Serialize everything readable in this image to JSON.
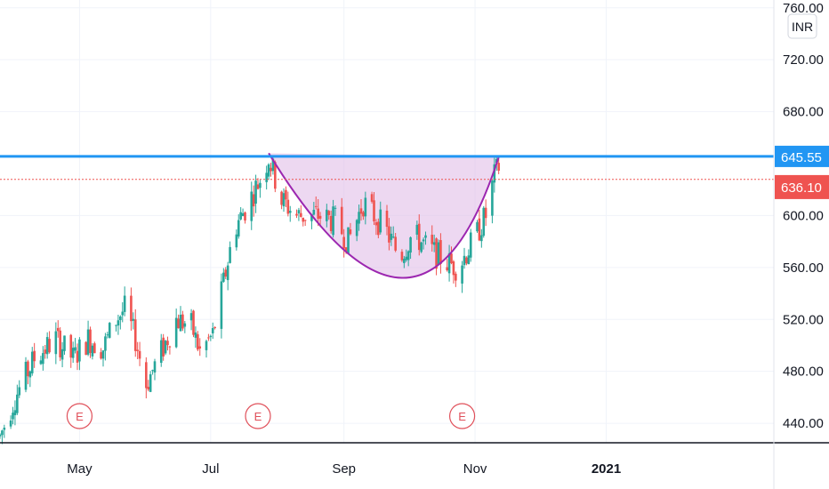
{
  "chart_data": {
    "type": "candlestick",
    "currency": "INR",
    "y_axis": {
      "range": [
        425,
        766
      ],
      "ticks": [
        "760.00",
        "720.00",
        "680.00",
        "600.00",
        "560.00",
        "520.00",
        "480.00",
        "440.00"
      ],
      "tick_values": [
        760,
        720,
        680,
        600,
        560,
        520,
        480,
        440
      ]
    },
    "x_axis": {
      "range": [
        "2020-03-25",
        "2021-03-20"
      ],
      "ticks": [
        {
          "label": "May",
          "date": "2020-05-01",
          "bold": false
        },
        {
          "label": "Jul",
          "date": "2020-07-01",
          "bold": false
        },
        {
          "label": "Sep",
          "date": "2020-09-01",
          "bold": false
        },
        {
          "label": "Nov",
          "date": "2020-11-01",
          "bold": false
        },
        {
          "label": "2021",
          "date": "2021-01-01",
          "bold": true
        }
      ]
    },
    "resistance": {
      "value": 645.55,
      "label": "645.55",
      "color": "#2196f3"
    },
    "last_price": {
      "value": 636.1,
      "label": "636.10",
      "color": "#ef5350"
    },
    "cup_pattern": {
      "left_rim": {
        "date": "2020-07-28",
        "value": 648
      },
      "bottom": {
        "date": "2020-09-28",
        "value": 552
      },
      "right_rim": {
        "date": "2020-11-12",
        "value": 645
      },
      "fill": "#e1bee7",
      "stroke": "#9c27b0"
    },
    "earnings_markers": [
      {
        "label": "E",
        "date": "2020-05-01"
      },
      {
        "label": "E",
        "date": "2020-07-23"
      },
      {
        "label": "E",
        "date": "2020-10-26"
      }
    ],
    "anchors": [
      [
        "2020-03-25",
        430
      ],
      [
        "2020-04-01",
        460
      ],
      [
        "2020-04-10",
        490
      ],
      [
        "2020-04-20",
        505
      ],
      [
        "2020-04-28",
        490
      ],
      [
        "2020-05-05",
        505
      ],
      [
        "2020-05-12",
        498
      ],
      [
        "2020-05-18",
        520
      ],
      [
        "2020-05-22",
        528
      ],
      [
        "2020-05-27",
        505
      ],
      [
        "2020-06-01",
        470
      ],
      [
        "2020-06-08",
        495
      ],
      [
        "2020-06-15",
        520
      ],
      [
        "2020-06-22",
        515
      ],
      [
        "2020-06-26",
        495
      ],
      [
        "2020-07-02",
        508
      ],
      [
        "2020-07-07",
        548
      ],
      [
        "2020-07-12",
        590
      ],
      [
        "2020-07-18",
        608
      ],
      [
        "2020-07-24",
        628
      ],
      [
        "2020-07-28",
        645
      ],
      [
        "2020-08-03",
        612
      ],
      [
        "2020-08-10",
        600
      ],
      [
        "2020-08-20",
        600
      ],
      [
        "2020-08-28",
        596
      ],
      [
        "2020-09-03",
        580
      ],
      [
        "2020-09-10",
        610
      ],
      [
        "2020-09-20",
        590
      ],
      [
        "2020-09-27",
        568
      ],
      [
        "2020-10-03",
        586
      ],
      [
        "2020-10-10",
        575
      ],
      [
        "2020-10-18",
        565
      ],
      [
        "2020-10-24",
        560
      ],
      [
        "2020-10-31",
        580
      ],
      [
        "2020-11-06",
        600
      ],
      [
        "2020-11-10",
        630
      ],
      [
        "2020-11-12",
        638
      ]
    ],
    "colors": {
      "up": "#26a69a",
      "down": "#ef5350",
      "grid": "#f0f3fa",
      "axis_line": "#131722"
    }
  }
}
